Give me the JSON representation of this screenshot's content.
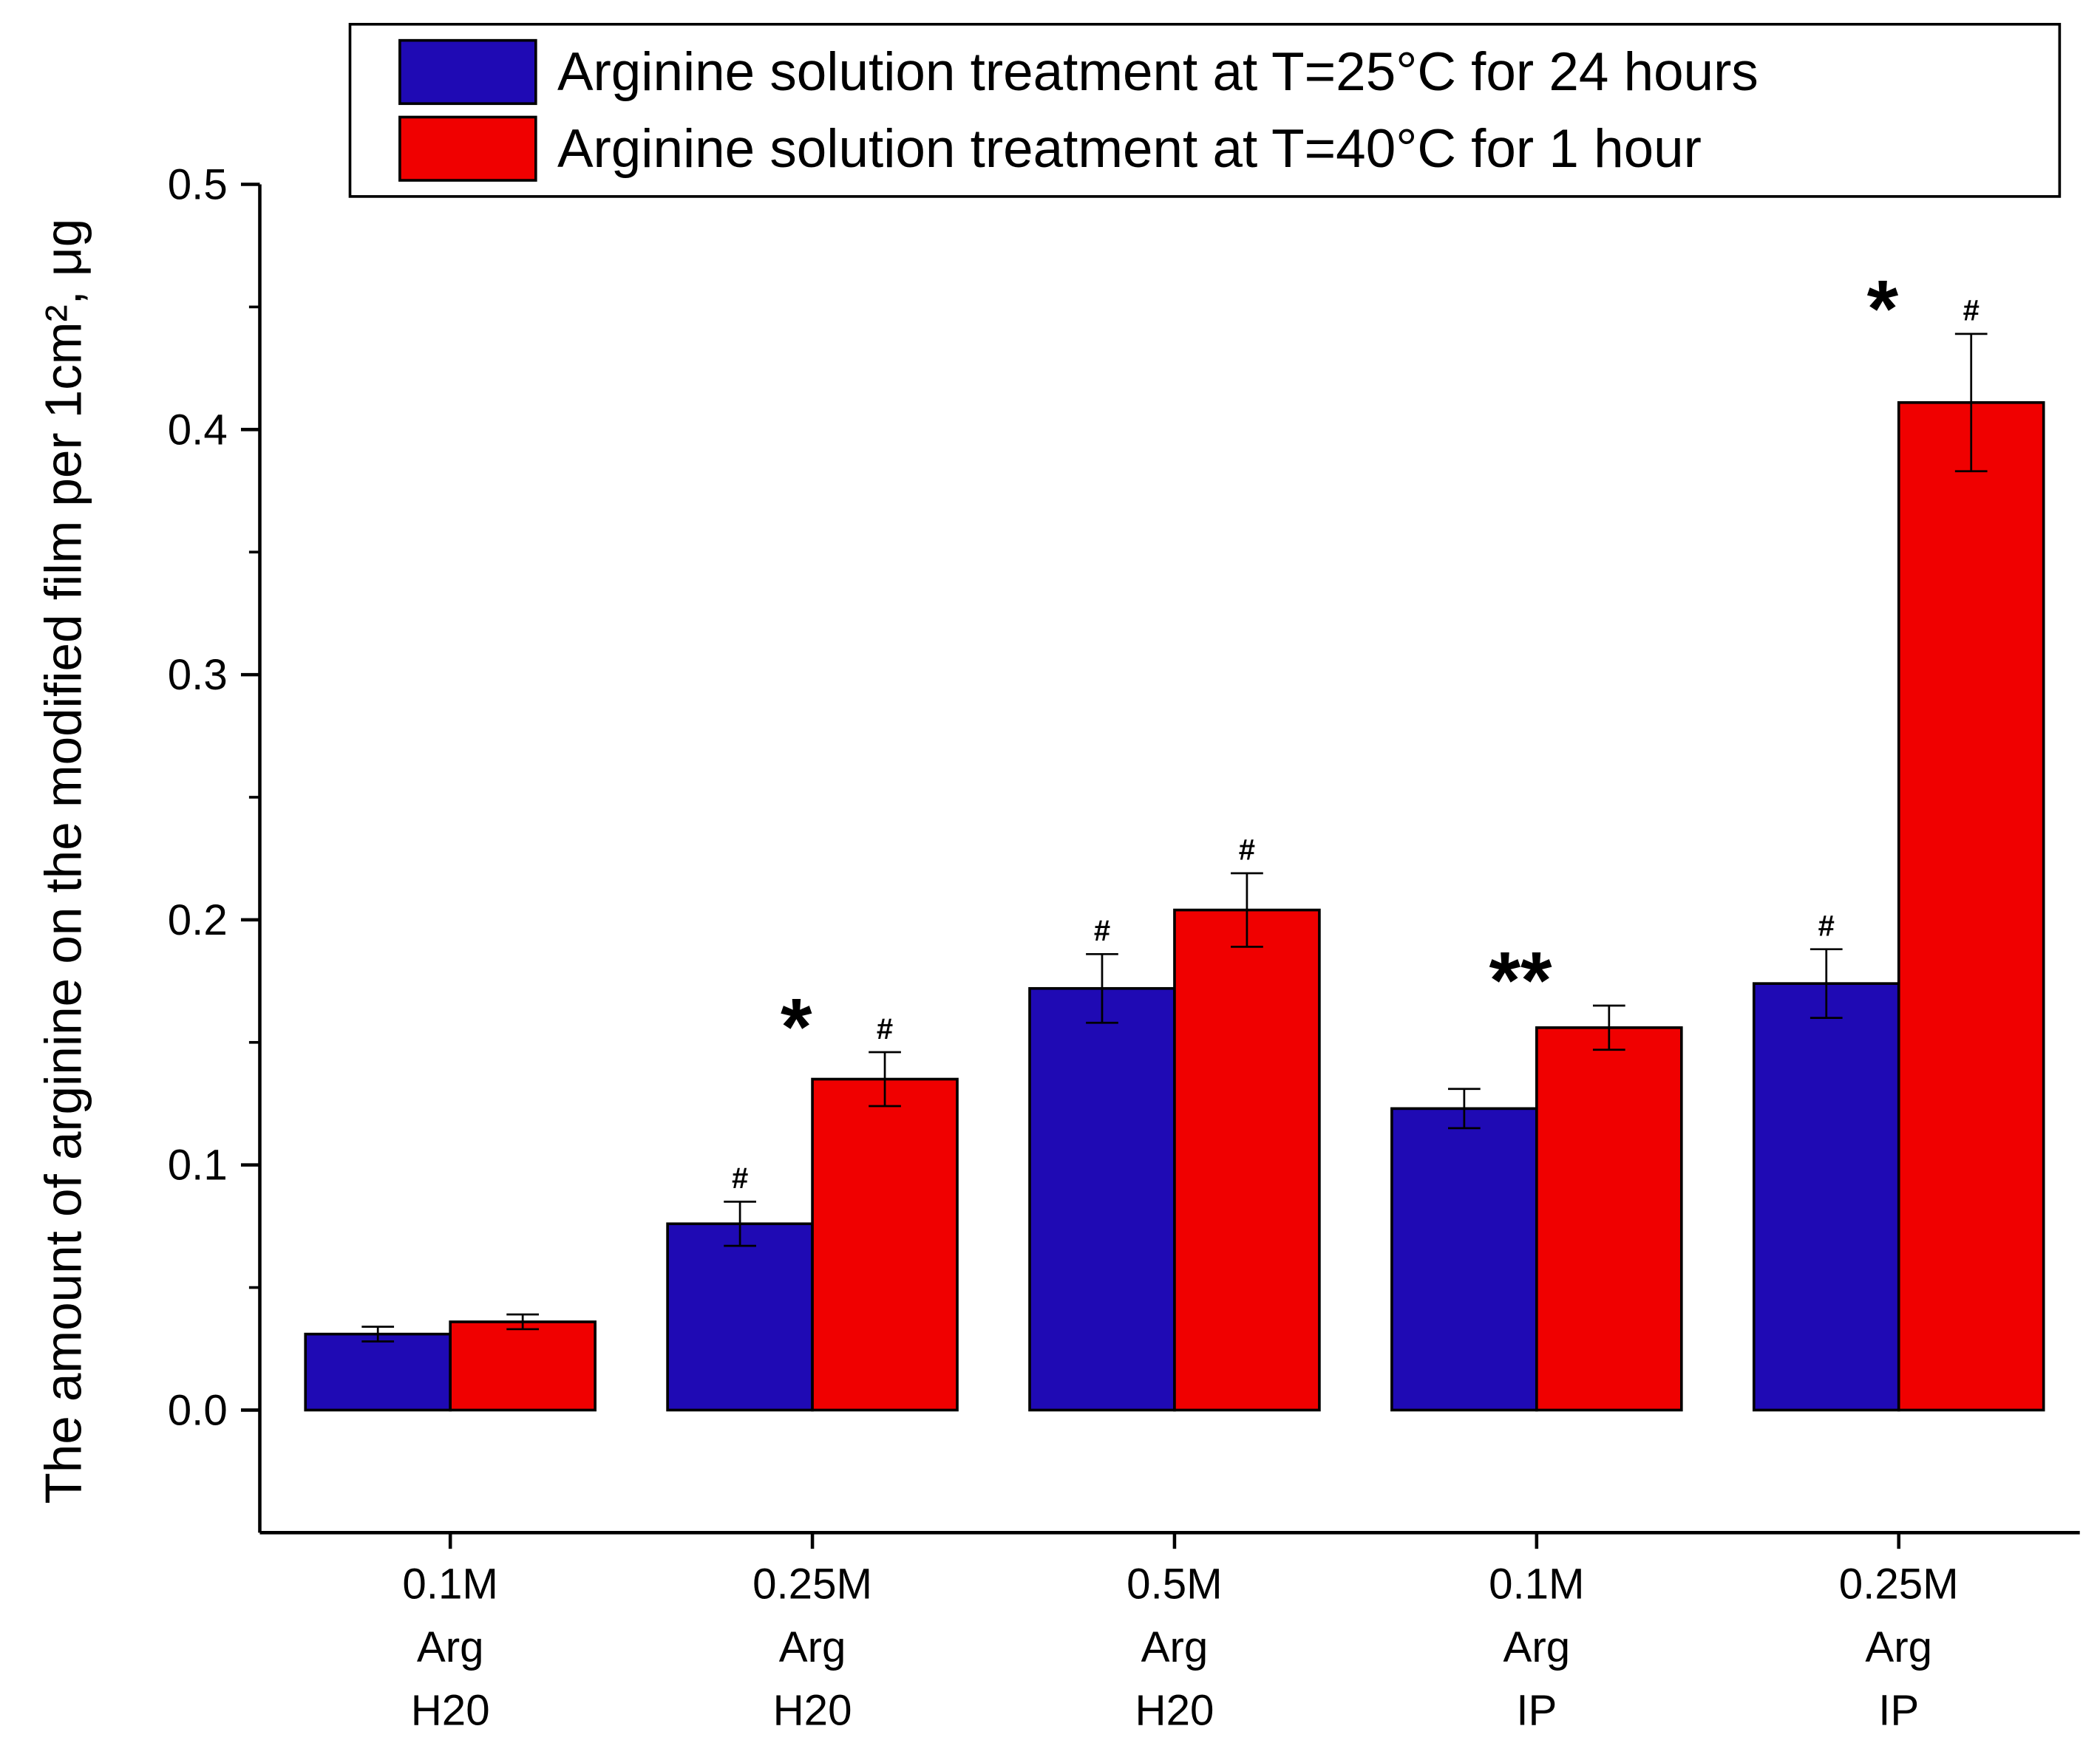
{
  "chart_data": {
    "type": "bar",
    "y_label": "The amount of arginine on the modified film per 1cm², μg",
    "categories": [
      [
        "0.1M",
        "Arg",
        "H20"
      ],
      [
        "0.25M",
        "Arg",
        "H20"
      ],
      [
        "0.5M",
        "Arg",
        "H20"
      ],
      [
        "0.1M",
        "Arg",
        "IP"
      ],
      [
        "0.25M",
        "Arg",
        "IP"
      ]
    ],
    "series": [
      {
        "name": "Arginine solution treatment at T=25°C for 24 hours",
        "color": "#1f0ab4",
        "values": [
          0.031,
          0.076,
          0.172,
          0.123,
          0.174
        ],
        "errors": [
          0.003,
          0.009,
          0.014,
          0.008,
          0.014
        ],
        "markers": [
          null,
          "#",
          "#",
          null,
          "#"
        ]
      },
      {
        "name": "Arginine solution treatment at T=40°C for 1 hour",
        "color": "#f00000",
        "values": [
          0.036,
          0.135,
          0.204,
          0.156,
          0.411
        ],
        "errors": [
          0.003,
          0.011,
          0.015,
          0.009,
          0.028
        ],
        "markers": [
          null,
          "#",
          "#",
          null,
          "#"
        ]
      }
    ],
    "significance": [
      null,
      "*",
      null,
      "**",
      "*"
    ],
    "ylim": [
      -0.05,
      0.5
    ],
    "yticks": [
      {
        "value": 0,
        "label": "0.0"
      },
      0.1,
      0.2,
      0.3,
      0.4,
      0.5
    ],
    "yminorticks": [
      0.05,
      0.15,
      0.25,
      0.35,
      0.45
    ]
  }
}
